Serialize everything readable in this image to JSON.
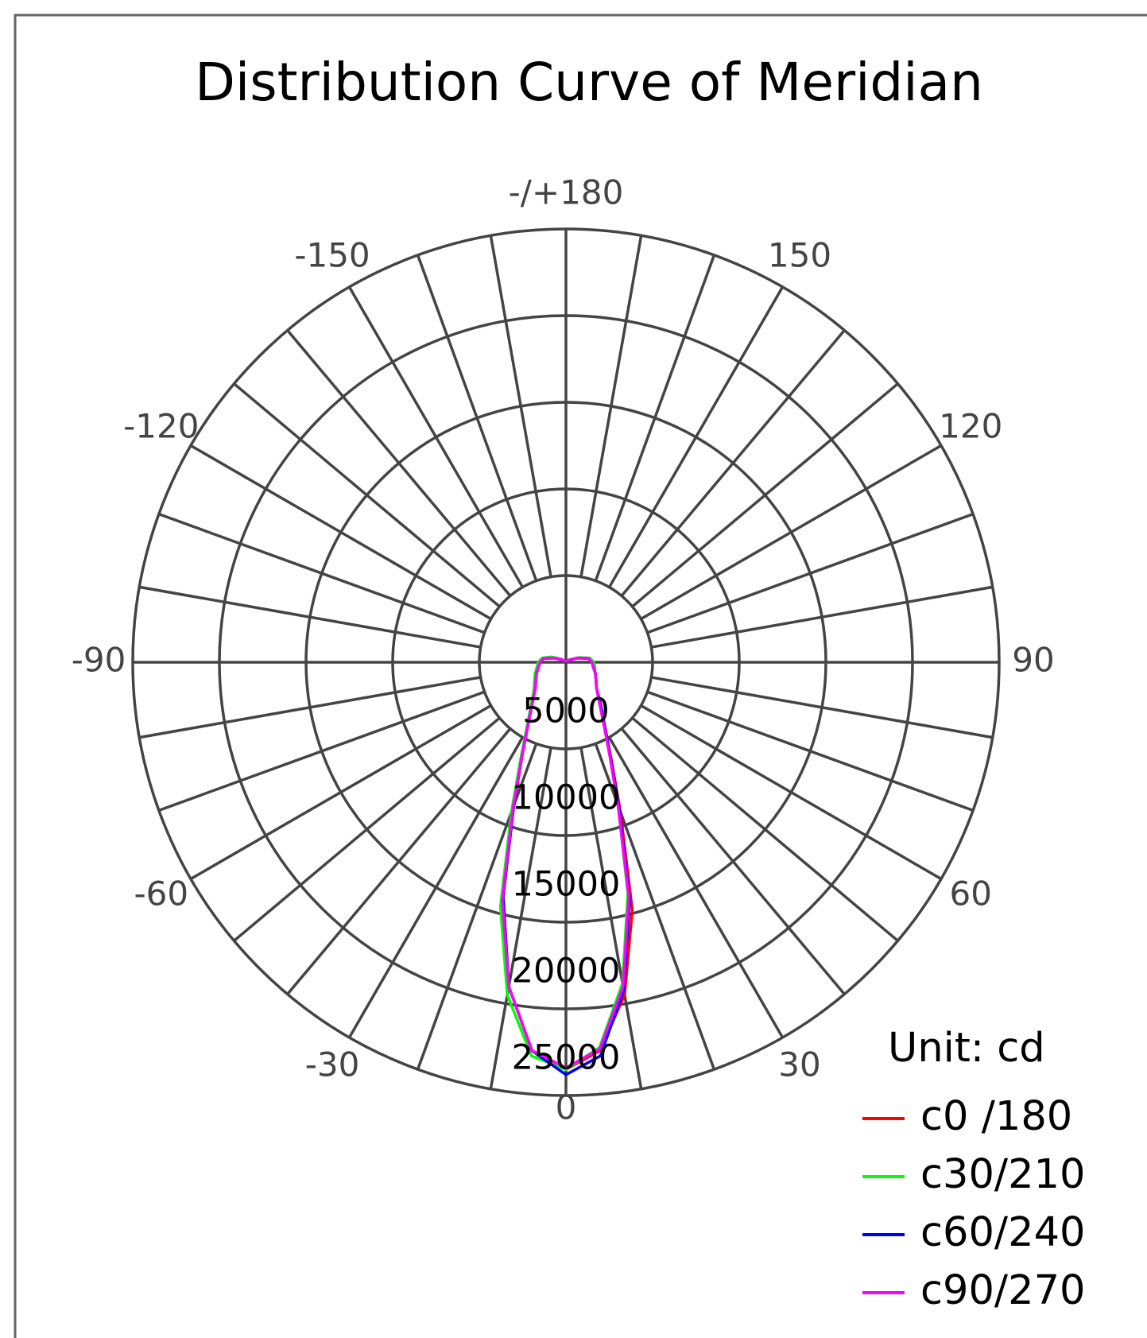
{
  "chart_data": {
    "type": "polar",
    "title": "Distribution Curve of  Meridian",
    "annotation": "Unit: cd",
    "x": [
      -180,
      -170,
      -160,
      -150,
      -140,
      -130,
      -120,
      -110,
      -100,
      -90,
      -80,
      -70,
      -60,
      -50,
      -40,
      -30,
      -25,
      -20,
      -15,
      -10,
      -5,
      0,
      5,
      10,
      15,
      20,
      25,
      30,
      40,
      50,
      60,
      70,
      80,
      90,
      100,
      110,
      120,
      130,
      140,
      150,
      160,
      170,
      180
    ],
    "rlim": [
      0,
      25000
    ],
    "rticks": [
      5000,
      10000,
      15000,
      20000,
      25000
    ],
    "angle_ticks": [
      {
        "value": 180,
        "label": "-/+180"
      },
      -150,
      150,
      -120,
      120,
      -90,
      90,
      -60,
      60,
      -30,
      30,
      0
    ],
    "spoke_step": 10,
    "legend": "lower right",
    "series": [
      {
        "name": "c0 /180",
        "color": "#ff0000",
        "values": [
          100,
          100,
          100,
          100,
          100,
          150,
          300,
          700,
          1300,
          1500,
          1600,
          1800,
          2000,
          2300,
          3000,
          4500,
          6000,
          8800,
          14000,
          19000,
          22500,
          23500,
          22500,
          19500,
          14800,
          9200,
          6200,
          4600,
          3000,
          2300,
          2000,
          1800,
          1600,
          1500,
          1300,
          700,
          300,
          150,
          100,
          100,
          100,
          100,
          100
        ]
      },
      {
        "name": "c30/210",
        "color": "#00ff00",
        "values": [
          100,
          100,
          100,
          100,
          100,
          150,
          400,
          900,
          1400,
          1600,
          1700,
          1900,
          2100,
          2400,
          3100,
          4600,
          6200,
          9200,
          14600,
          19500,
          22800,
          23500,
          22300,
          18800,
          13800,
          8800,
          6000,
          4500,
          3000,
          2300,
          2000,
          1800,
          1700,
          1600,
          1400,
          800,
          300,
          150,
          100,
          100,
          100,
          100,
          100
        ]
      },
      {
        "name": "c60/240",
        "color": "#0000ff",
        "values": [
          100,
          100,
          100,
          100,
          100,
          150,
          300,
          700,
          1300,
          1500,
          1600,
          1800,
          2000,
          2300,
          3000,
          4500,
          6000,
          8800,
          14000,
          19000,
          22500,
          23800,
          22800,
          19200,
          14200,
          9000,
          6100,
          4600,
          3100,
          2300,
          2000,
          1800,
          1600,
          1500,
          1300,
          700,
          300,
          150,
          100,
          100,
          100,
          100,
          100
        ]
      },
      {
        "name": "c90/270",
        "color": "#ff00ff",
        "values": [
          100,
          100,
          100,
          100,
          100,
          150,
          300,
          700,
          1300,
          1500,
          1600,
          1800,
          2000,
          2300,
          3000,
          4500,
          6000,
          8900,
          14200,
          19000,
          22500,
          23400,
          22400,
          19000,
          14000,
          8800,
          6000,
          4500,
          3000,
          2300,
          2000,
          1800,
          1600,
          1500,
          1300,
          700,
          300,
          150,
          100,
          100,
          100,
          100,
          100
        ]
      }
    ]
  }
}
